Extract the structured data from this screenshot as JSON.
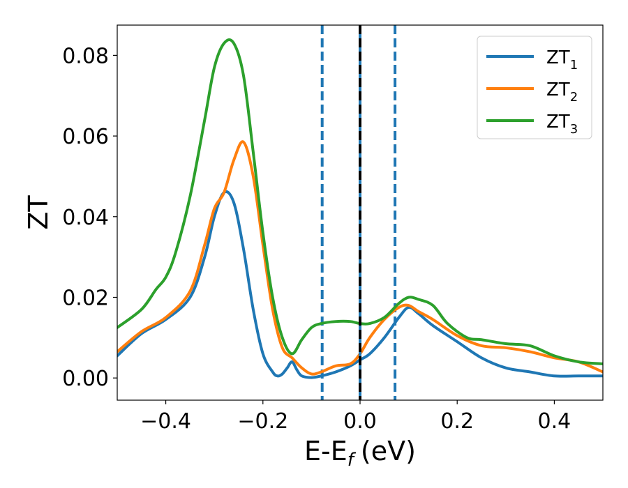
{
  "chart_data": {
    "type": "line",
    "xlabel": "E-E",
    "xlabel_sub": "f",
    "xlabel_unit": "(eV)",
    "ylabel": "ZT",
    "xlim": [
      -0.5,
      0.5
    ],
    "ylim": [
      -0.0055,
      0.0875
    ],
    "x_ticks": [
      -0.4,
      -0.2,
      0.0,
      0.2,
      0.4
    ],
    "x_tick_labels": [
      "−0.4",
      "−0.2",
      "0.0",
      "0.2",
      "0.4"
    ],
    "y_ticks": [
      0.0,
      0.02,
      0.04,
      0.06,
      0.08
    ],
    "y_tick_labels": [
      "0.00",
      "0.02",
      "0.04",
      "0.06",
      "0.08"
    ],
    "grid": false,
    "legend_position": "top-right",
    "vlines": [
      {
        "x": -0.078,
        "style": "dashed",
        "color": "#1f77b4"
      },
      {
        "x": 0.072,
        "style": "dashed",
        "color": "#1f77b4"
      },
      {
        "x": 0.0,
        "style": "solid",
        "color": "#1f77b4"
      },
      {
        "x": 0.0,
        "style": "dashed",
        "color": "#000000"
      }
    ],
    "series": [
      {
        "name": "ZT",
        "name_sub": "1",
        "color": "#1f77b4",
        "x": [
          -0.5,
          -0.45,
          -0.4,
          -0.35,
          -0.32,
          -0.3,
          -0.28,
          -0.26,
          -0.24,
          -0.22,
          -0.2,
          -0.18,
          -0.17,
          -0.16,
          -0.15,
          -0.14,
          -0.13,
          -0.12,
          -0.1,
          -0.08,
          -0.05,
          -0.02,
          0.0,
          0.02,
          0.05,
          0.08,
          0.1,
          0.12,
          0.15,
          0.2,
          0.25,
          0.3,
          0.35,
          0.4,
          0.45,
          0.5
        ],
        "values": [
          0.0055,
          0.011,
          0.0145,
          0.02,
          0.03,
          0.04,
          0.046,
          0.0435,
          0.032,
          0.017,
          0.006,
          0.0015,
          0.0005,
          0.001,
          0.0025,
          0.004,
          0.002,
          0.0005,
          0.0001,
          0.0005,
          0.0015,
          0.003,
          0.0045,
          0.006,
          0.01,
          0.015,
          0.0175,
          0.016,
          0.013,
          0.009,
          0.005,
          0.0025,
          0.0015,
          0.0005,
          0.0005,
          0.0005
        ]
      },
      {
        "name": "ZT",
        "name_sub": "2",
        "color": "#ff7f0e",
        "x": [
          -0.5,
          -0.45,
          -0.4,
          -0.35,
          -0.32,
          -0.3,
          -0.28,
          -0.26,
          -0.24,
          -0.22,
          -0.2,
          -0.18,
          -0.16,
          -0.14,
          -0.12,
          -0.1,
          -0.08,
          -0.05,
          -0.02,
          0.0,
          0.02,
          0.05,
          0.08,
          0.1,
          0.12,
          0.15,
          0.2,
          0.25,
          0.3,
          0.35,
          0.4,
          0.45,
          0.5
        ],
        "values": [
          0.0065,
          0.0115,
          0.015,
          0.0215,
          0.033,
          0.042,
          0.046,
          0.054,
          0.0585,
          0.05,
          0.033,
          0.017,
          0.0075,
          0.005,
          0.0025,
          0.001,
          0.0015,
          0.003,
          0.0035,
          0.006,
          0.01,
          0.0145,
          0.0175,
          0.018,
          0.0165,
          0.0145,
          0.0105,
          0.008,
          0.0075,
          0.0065,
          0.005,
          0.004,
          0.0015
        ]
      },
      {
        "name": "ZT",
        "name_sub": "3",
        "color": "#2ca02c",
        "x": [
          -0.5,
          -0.45,
          -0.42,
          -0.4,
          -0.38,
          -0.35,
          -0.32,
          -0.3,
          -0.28,
          -0.26,
          -0.24,
          -0.22,
          -0.2,
          -0.18,
          -0.16,
          -0.14,
          -0.12,
          -0.1,
          -0.08,
          -0.05,
          -0.02,
          0.0,
          0.02,
          0.05,
          0.08,
          0.1,
          0.12,
          0.15,
          0.18,
          0.22,
          0.25,
          0.3,
          0.35,
          0.4,
          0.45,
          0.5
        ],
        "values": [
          0.0125,
          0.017,
          0.022,
          0.025,
          0.031,
          0.045,
          0.064,
          0.077,
          0.083,
          0.083,
          0.075,
          0.056,
          0.036,
          0.02,
          0.01,
          0.006,
          0.0095,
          0.0125,
          0.0135,
          0.014,
          0.014,
          0.0135,
          0.0135,
          0.015,
          0.0185,
          0.02,
          0.0195,
          0.018,
          0.0135,
          0.01,
          0.0095,
          0.0085,
          0.008,
          0.0055,
          0.004,
          0.0035
        ]
      }
    ]
  }
}
